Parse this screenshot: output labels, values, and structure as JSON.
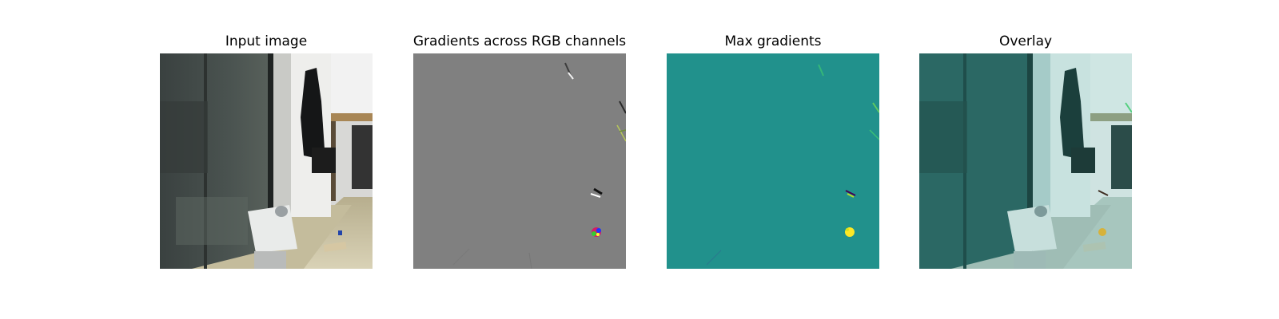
{
  "figure": {
    "panels": [
      {
        "title": "Input image"
      },
      {
        "title": "Gradients across RGB channels"
      },
      {
        "title": "Max gradients"
      },
      {
        "title": "Overlay"
      }
    ]
  },
  "colors": {
    "gradient_background": "#808080",
    "max_gradient_background": "#21918c",
    "max_gradient_peak": "#fde725",
    "overlay_tint": "#3fa7a3"
  }
}
